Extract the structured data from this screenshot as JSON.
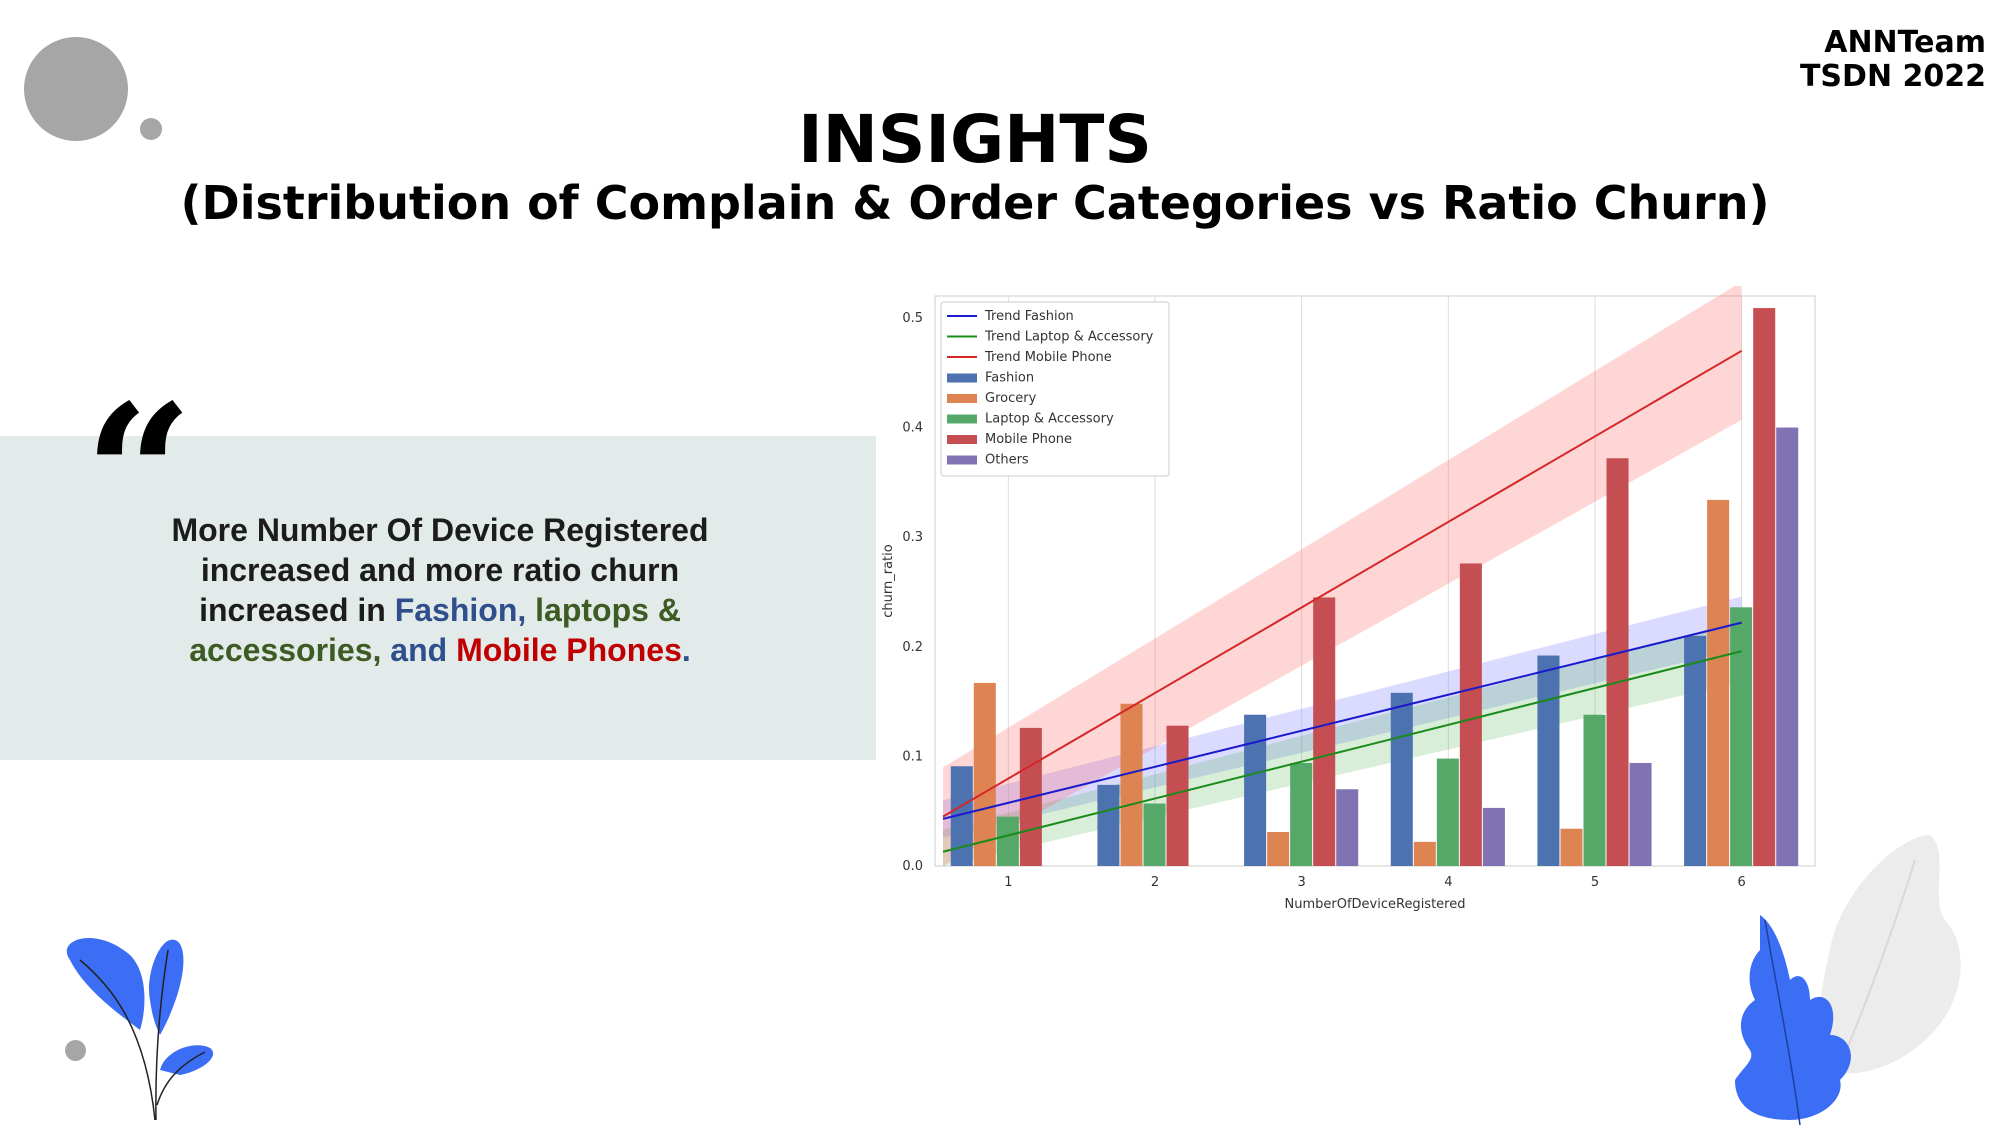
{
  "header": {
    "team_line1": "ANNTeam",
    "team_line2": "TSDN 2022"
  },
  "slide": {
    "title": "INSIGHTS",
    "subtitle": "(Distribution of Complain & Order Categories vs Ratio Churn)"
  },
  "quote": {
    "mark": "“",
    "line1": "More Number Of Device Registered increased and more ratio churn increased in",
    "fashion": "Fashion,",
    "laptops": "laptops & accessories,",
    "and_text": "and",
    "mobile": "Mobile Phones",
    "end": "."
  },
  "colors": {
    "fashion": "#4c72b0",
    "grocery": "#dd8452",
    "laptop": "#55a868",
    "mobile": "#c44e52",
    "others": "#8172b3",
    "trend_fashion": "#1a1acc",
    "trend_laptop": "#1a8a1a",
    "trend_mobile": "#d62728"
  },
  "chart_data": {
    "type": "bar",
    "xlabel": "NumberOfDeviceRegistered",
    "ylabel": "churn_ratio",
    "ylim": [
      0,
      0.52
    ],
    "yticks": [
      "0.0",
      "0.1",
      "0.2",
      "0.3",
      "0.4",
      "0.5"
    ],
    "categories": [
      "1",
      "2",
      "3",
      "4",
      "5",
      "6"
    ],
    "series": [
      {
        "name": "Fashion",
        "values": [
          0.091,
          0.074,
          0.138,
          0.158,
          0.192,
          0.21
        ]
      },
      {
        "name": "Grocery",
        "values": [
          0.167,
          0.148,
          0.031,
          0.022,
          0.034,
          0.334
        ]
      },
      {
        "name": "Laptop & Accessory",
        "values": [
          0.045,
          0.057,
          0.094,
          0.098,
          0.138,
          0.236
        ]
      },
      {
        "name": "Mobile Phone",
        "values": [
          0.126,
          0.128,
          0.245,
          0.276,
          0.372,
          0.509
        ]
      },
      {
        "name": "Others",
        "values": [
          null,
          null,
          0.07,
          0.053,
          0.094,
          0.4
        ]
      }
    ],
    "trends": [
      {
        "name": "Trend Fashion",
        "y_start": 0.043,
        "y_end": 0.222,
        "band": 0.017
      },
      {
        "name": "Trend Laptop & Accessory",
        "y_start": 0.013,
        "y_end": 0.196,
        "band": 0.02
      },
      {
        "name": "Trend Mobile Phone",
        "y_start": 0.045,
        "y_end": 0.47,
        "band": 0.045
      }
    ],
    "legend": [
      "Trend Fashion",
      "Trend Laptop & Accessory",
      "Trend Mobile Phone",
      "Fashion",
      "Grocery",
      "Laptop & Accessory",
      "Mobile Phone",
      "Others"
    ],
    "legend_position": "top-left",
    "grid": true
  }
}
